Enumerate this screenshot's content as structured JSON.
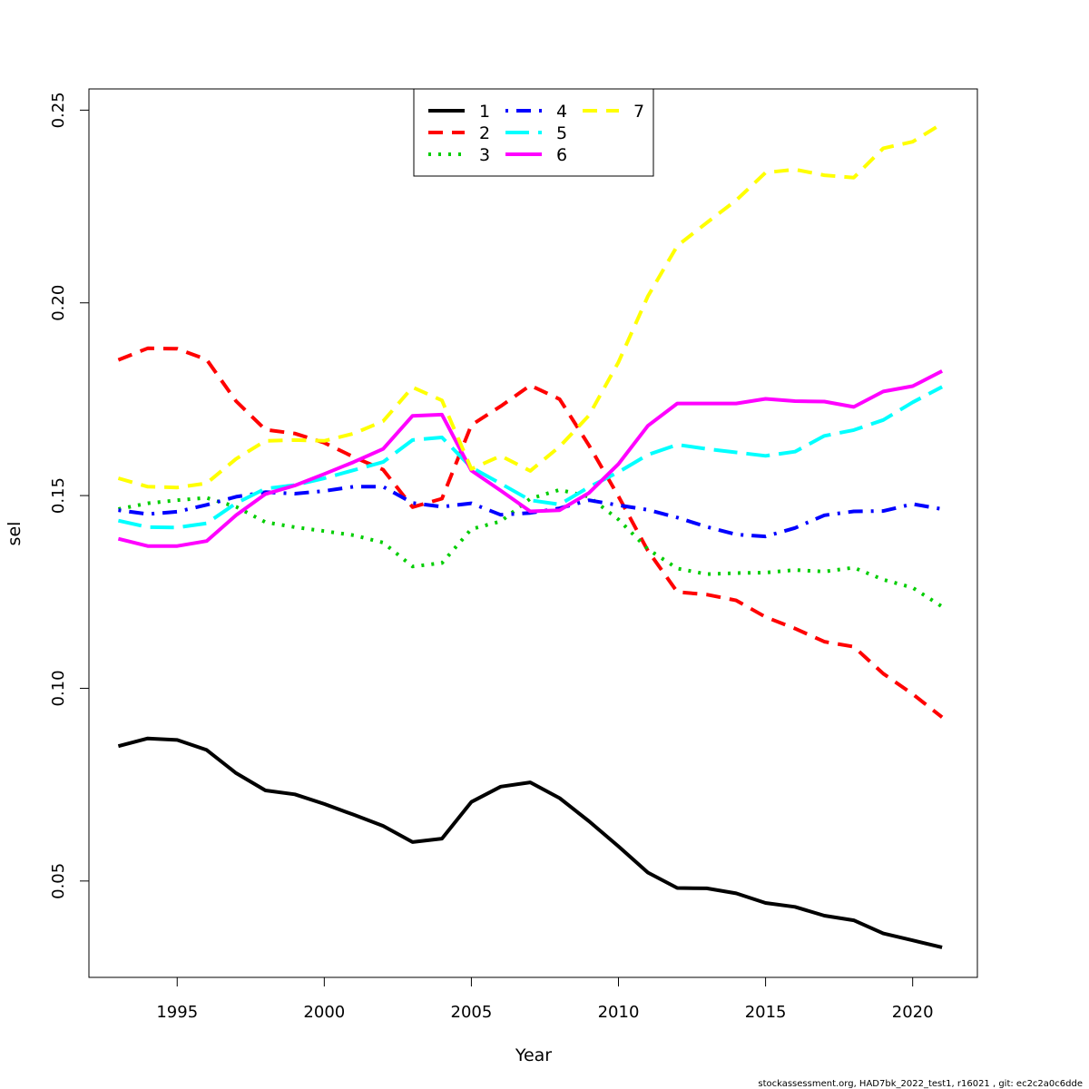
{
  "chart_data": {
    "type": "line",
    "title": "",
    "xlabel": "Year",
    "ylabel": "sel",
    "xlim": [
      1992,
      2022.2
    ],
    "ylim": [
      0.025,
      0.2555
    ],
    "x_ticks": [
      1995,
      2000,
      2005,
      2010,
      2015,
      2020
    ],
    "x_tick_labels": [
      "1995",
      "2000",
      "2005",
      "2010",
      "2015",
      "2020"
    ],
    "y_ticks": [
      0.05,
      0.1,
      0.15,
      0.2,
      0.25
    ],
    "y_tick_labels": [
      "0.05",
      "0.10",
      "0.15",
      "0.20",
      "0.25"
    ],
    "grid": false,
    "legend_position": "top-center",
    "x": [
      1993,
      1994,
      1995,
      1996,
      1997,
      1998,
      1999,
      2000,
      2001,
      2002,
      2003,
      2004,
      2005,
      2006,
      2007,
      2008,
      2009,
      2010,
      2011,
      2012,
      2013,
      2014,
      2015,
      2016,
      2017,
      2018,
      2019,
      2020,
      2021
    ],
    "series": [
      {
        "name": "1",
        "color": "#000000",
        "dash": "solid",
        "values": [
          0.085,
          0.087,
          0.0866,
          0.084,
          0.078,
          0.0735,
          0.0725,
          0.07,
          0.0672,
          0.0643,
          0.0601,
          0.061,
          0.0705,
          0.0745,
          0.0756,
          0.0715,
          0.0655,
          0.059,
          0.0522,
          0.0482,
          0.0481,
          0.0468,
          0.0443,
          0.0433,
          0.041,
          0.0398,
          0.0364,
          0.0346,
          0.0328
        ]
      },
      {
        "name": "2",
        "color": "#ff0000",
        "dash": "dashed",
        "values": [
          0.1852,
          0.1882,
          0.1881,
          0.1853,
          0.1745,
          0.1671,
          0.1661,
          0.1637,
          0.16,
          0.1567,
          0.147,
          0.1492,
          0.1683,
          0.1732,
          0.1786,
          0.175,
          0.163,
          0.1498,
          0.1357,
          0.125,
          0.1243,
          0.1228,
          0.1185,
          0.1155,
          0.1121,
          0.1108,
          0.1038,
          0.0985,
          0.0925
        ]
      },
      {
        "name": "3",
        "color": "#00cd00",
        "dash": "dotted",
        "values": [
          0.1465,
          0.148,
          0.1488,
          0.1494,
          0.1471,
          0.1431,
          0.1418,
          0.1408,
          0.1397,
          0.1378,
          0.1316,
          0.1325,
          0.1413,
          0.1433,
          0.1492,
          0.1515,
          0.1497,
          0.1438,
          0.1361,
          0.1311,
          0.1296,
          0.1299,
          0.13,
          0.1307,
          0.1303,
          0.1313,
          0.1282,
          0.1261,
          0.1212
        ]
      },
      {
        "name": "4",
        "color": "#0000ff",
        "dash": "dotdash",
        "values": [
          0.1462,
          0.1452,
          0.1458,
          0.1476,
          0.1497,
          0.1509,
          0.1505,
          0.1512,
          0.1523,
          0.1523,
          0.1481,
          0.1471,
          0.148,
          0.145,
          0.1455,
          0.1467,
          0.1488,
          0.1475,
          0.1463,
          0.1443,
          0.1419,
          0.1399,
          0.1394,
          0.1416,
          0.1449,
          0.1459,
          0.146,
          0.1478,
          0.1465
        ]
      },
      {
        "name": "5",
        "color": "#00ffff",
        "dash": "longdash",
        "values": [
          0.1435,
          0.1418,
          0.1417,
          0.1428,
          0.148,
          0.1518,
          0.1527,
          0.1545,
          0.1566,
          0.1587,
          0.1644,
          0.1651,
          0.1573,
          0.1531,
          0.1488,
          0.1477,
          0.1522,
          0.1561,
          0.1606,
          0.1632,
          0.1621,
          0.1612,
          0.1603,
          0.1614,
          0.1655,
          0.167,
          0.1696,
          0.1742,
          0.1782
        ]
      },
      {
        "name": "6",
        "color": "#ff00ff",
        "dash": "solid",
        "values": [
          0.1388,
          0.1369,
          0.1369,
          0.1382,
          0.1449,
          0.1504,
          0.1526,
          0.1556,
          0.1587,
          0.1621,
          0.1707,
          0.171,
          0.1565,
          0.1513,
          0.1459,
          0.1462,
          0.1507,
          0.1582,
          0.1681,
          0.1739,
          0.1739,
          0.1739,
          0.1751,
          0.1745,
          0.1744,
          0.173,
          0.177,
          0.1784,
          0.1823
        ]
      },
      {
        "name": "7",
        "color": "#ffff00",
        "dash": "dashed",
        "values": [
          0.1545,
          0.1523,
          0.1521,
          0.1532,
          0.1595,
          0.1642,
          0.1644,
          0.1642,
          0.1661,
          0.1693,
          0.1781,
          0.1747,
          0.1569,
          0.1603,
          0.1564,
          0.1627,
          0.1708,
          0.1846,
          0.2017,
          0.2148,
          0.2208,
          0.2266,
          0.2338,
          0.2346,
          0.2331,
          0.2325,
          0.2401,
          0.2418,
          0.2465
        ]
      }
    ]
  },
  "footer": "stockassessment.org, HAD7bk_2022_test1, r16021 , git: ec2c2a0c6dde"
}
